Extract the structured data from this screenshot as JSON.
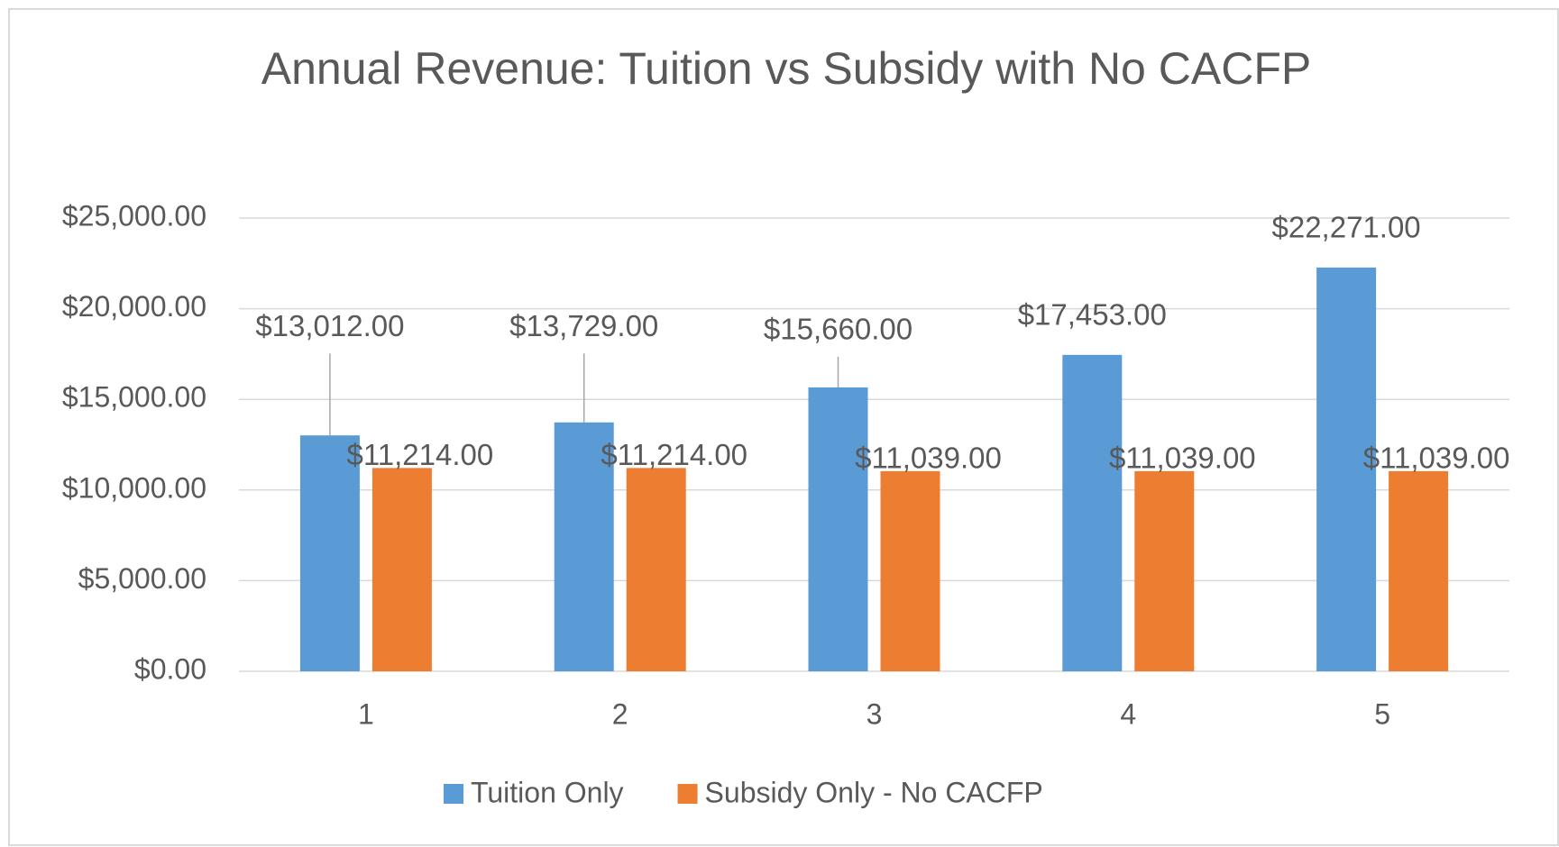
{
  "chart_data": {
    "type": "bar",
    "title": "Annual Revenue: Tuition vs Subsidy with No CACFP",
    "categories": [
      "1",
      "2",
      "3",
      "4",
      "5"
    ],
    "series": [
      {
        "name": "Tuition Only",
        "color": "#5b9bd5",
        "values": [
          13012,
          13729,
          15660,
          17453,
          22271
        ],
        "value_labels": [
          "$13,012.00",
          "$13,729.00",
          "$15,660.00",
          "$17,453.00",
          "$22,271.00"
        ]
      },
      {
        "name": "Subsidy Only - No CACFP",
        "color": "#ed7d31",
        "values": [
          11214,
          11214,
          11039,
          11039,
          11039
        ],
        "value_labels": [
          "$11,214.00",
          "$11,214.00",
          "$11,039.00",
          "$11,039.00",
          "$11,039.00"
        ]
      }
    ],
    "ylim": [
      0,
      25000
    ],
    "yticks": [
      {
        "value": 0,
        "label": "$0.00"
      },
      {
        "value": 5000,
        "label": "$5,000.00"
      },
      {
        "value": 10000,
        "label": "$10,000.00"
      },
      {
        "value": 15000,
        "label": "$15,000.00"
      },
      {
        "value": 20000,
        "label": "$20,000.00"
      },
      {
        "value": 25000,
        "label": "$25,000.00"
      }
    ],
    "grid": true,
    "legend": "bottom"
  }
}
